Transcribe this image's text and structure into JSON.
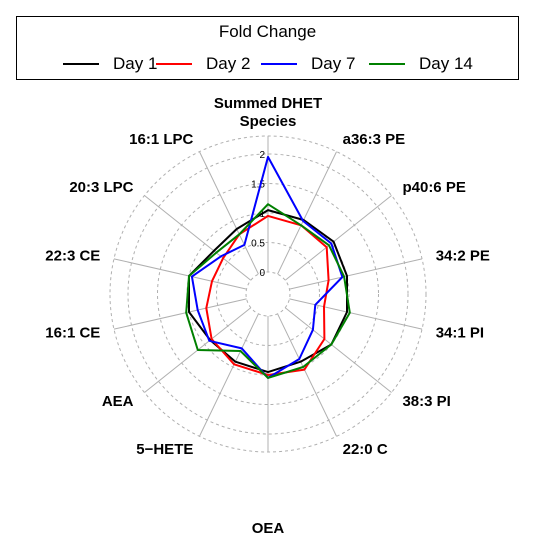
{
  "chart_data": {
    "type": "radar",
    "title": "Fold Change",
    "legend_placement": "top",
    "radial_ticks": [
      "0",
      "0.5",
      "1",
      "1.5",
      "2"
    ],
    "rlim": [
      0,
      2
    ],
    "categories": [
      "Summed DHET Species",
      "a36:3 PE",
      "p40:6 PE",
      "34:2 PE",
      "34:1 PI",
      "38:3 PI",
      "22:0 C",
      "OEA",
      "5−HETE",
      "AEA",
      "16:1 CE",
      "22:3 CE",
      "20:3 LPC",
      "16:1 LPC"
    ],
    "series": [
      {
        "name": "Day 1",
        "color": "#000000",
        "values": [
          1.05,
          1.02,
          1.05,
          1.0,
          1.0,
          1.0,
          0.9,
          0.95,
          0.9,
          0.88,
          1.0,
          1.0,
          0.8,
          0.85
        ]
      },
      {
        "name": "Day 2",
        "color": "#ff0000",
        "values": [
          0.95,
          0.92,
          0.9,
          0.68,
          0.6,
          0.85,
          1.05,
          1.0,
          0.95,
          0.85,
          0.7,
          0.6,
          0.6,
          0.75
        ]
      },
      {
        "name": "Day 7",
        "color": "#0000ff",
        "values": [
          1.95,
          1.0,
          1.0,
          0.92,
          0.45,
          0.6,
          0.85,
          1.05,
          0.65,
          0.9,
          0.85,
          0.95,
          0.65,
          0.55
        ]
      },
      {
        "name": "Day 14",
        "color": "#008000",
        "values": [
          1.15,
          0.92,
          0.95,
          0.95,
          1.05,
          1.0,
          1.0,
          1.05,
          0.7,
          1.15,
          1.05,
          1.0,
          0.75,
          0.75
        ]
      }
    ]
  }
}
